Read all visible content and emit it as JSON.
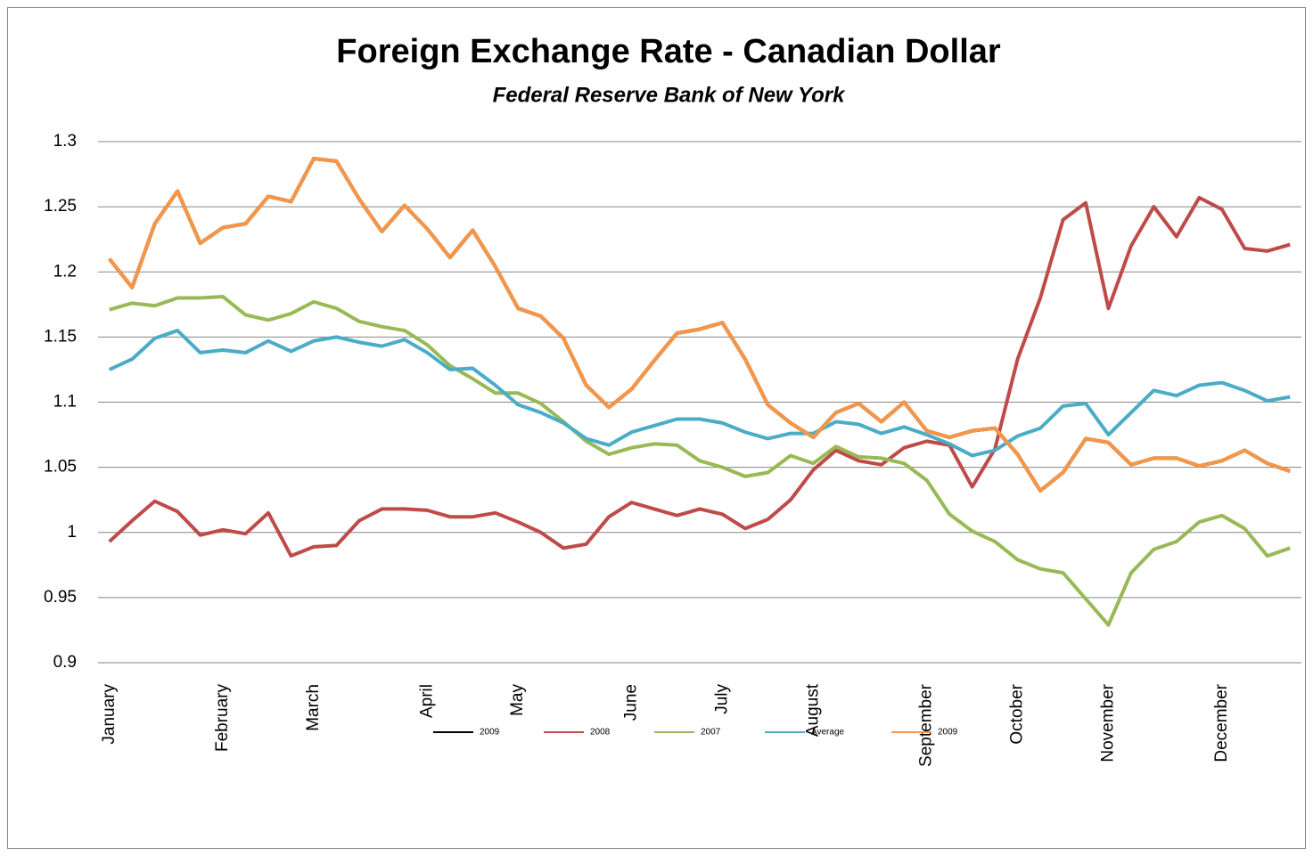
{
  "chart_data": {
    "type": "line",
    "title": "Foreign Exchange Rate - Canadian Dollar",
    "subtitle": "Federal Reserve Bank of New York",
    "categories": [
      "January",
      null,
      null,
      null,
      null,
      "February",
      null,
      null,
      null,
      "March",
      null,
      null,
      null,
      null,
      "April",
      null,
      null,
      null,
      "May",
      null,
      null,
      null,
      null,
      "June",
      null,
      null,
      null,
      "July",
      null,
      null,
      null,
      "August",
      null,
      null,
      null,
      null,
      "September",
      null,
      null,
      null,
      "October",
      null,
      null,
      null,
      "November",
      null,
      null,
      null,
      null,
      "December",
      null,
      null,
      null
    ],
    "ylim": [
      0.9,
      1.3
    ],
    "yticks": [
      0.9,
      0.95,
      1,
      1.05,
      1.1,
      1.15,
      1.2,
      1.25,
      1.3
    ],
    "grid": true,
    "legend": "bottom",
    "series": [
      {
        "name": "2009",
        "color": "#000000",
        "values": [
          1.21,
          1.188,
          1.237,
          1.262,
          1.222,
          1.234,
          1.237,
          1.258,
          1.254,
          1.287,
          1.285,
          1.256,
          1.231,
          1.251,
          1.233,
          1.211,
          1.232,
          1.204,
          1.172,
          1.166,
          1.149,
          1.113,
          1.096,
          1.11,
          1.132,
          1.153,
          1.156,
          1.161,
          1.133,
          1.098,
          1.084,
          1.073,
          1.092,
          1.099,
          1.085,
          1.1,
          1.078,
          1.073,
          1.078,
          1.08,
          1.06,
          1.032,
          1.046,
          1.072,
          1.069,
          1.052,
          1.057,
          1.057,
          1.051,
          1.055,
          1.063,
          1.053,
          1.047
        ]
      },
      {
        "name": "2008",
        "color": "#be4b48",
        "values": [
          0.993,
          1.009,
          1.024,
          1.016,
          0.998,
          1.002,
          0.999,
          1.015,
          0.982,
          0.989,
          0.99,
          1.009,
          1.018,
          1.018,
          1.017,
          1.012,
          1.012,
          1.015,
          1.008,
          1.0,
          0.988,
          0.991,
          1.012,
          1.023,
          1.018,
          1.013,
          1.018,
          1.014,
          1.003,
          1.01,
          1.025,
          1.048,
          1.063,
          1.055,
          1.052,
          1.065,
          1.07,
          1.067,
          1.035,
          1.064,
          1.133,
          1.18,
          1.24,
          1.253,
          1.172,
          1.22,
          1.25,
          1.227,
          1.257,
          1.248,
          1.218,
          1.216,
          1.221
        ]
      },
      {
        "name": "2007",
        "color": "#98b954",
        "values": [
          1.171,
          1.176,
          1.174,
          1.18,
          1.18,
          1.181,
          1.167,
          1.163,
          1.168,
          1.177,
          1.172,
          1.162,
          1.158,
          1.155,
          1.144,
          1.128,
          1.118,
          1.107,
          1.107,
          1.099,
          1.085,
          1.07,
          1.06,
          1.065,
          1.068,
          1.067,
          1.055,
          1.05,
          1.043,
          1.046,
          1.059,
          1.053,
          1.066,
          1.058,
          1.057,
          1.053,
          1.04,
          1.014,
          1.001,
          0.993,
          0.979,
          0.972,
          0.969,
          0.949,
          0.929,
          0.969,
          0.987,
          0.993,
          1.008,
          1.013,
          1.003,
          0.982,
          0.988
        ]
      },
      {
        "name": "Average",
        "color": "#4aacc6",
        "values": [
          1.125,
          1.133,
          1.149,
          1.155,
          1.138,
          1.14,
          1.138,
          1.147,
          1.139,
          1.147,
          1.15,
          1.146,
          1.143,
          1.148,
          1.138,
          1.125,
          1.126,
          1.113,
          1.098,
          1.092,
          1.084,
          1.072,
          1.067,
          1.077,
          1.082,
          1.087,
          1.087,
          1.084,
          1.077,
          1.072,
          1.076,
          1.076,
          1.085,
          1.083,
          1.076,
          1.081,
          1.075,
          1.068,
          1.059,
          1.063,
          1.074,
          1.08,
          1.097,
          1.099,
          1.075,
          1.092,
          1.109,
          1.105,
          1.113,
          1.115,
          1.109,
          1.101,
          1.104
        ]
      },
      {
        "name": "2009",
        "color": "#f79646",
        "values": [
          1.21,
          1.188,
          1.237,
          1.262,
          1.222,
          1.234,
          1.237,
          1.258,
          1.254,
          1.287,
          1.285,
          1.256,
          1.231,
          1.251,
          1.233,
          1.211,
          1.232,
          1.204,
          1.172,
          1.166,
          1.149,
          1.113,
          1.096,
          1.11,
          1.132,
          1.153,
          1.156,
          1.161,
          1.133,
          1.098,
          1.084,
          1.073,
          1.092,
          1.099,
          1.085,
          1.1,
          1.078,
          1.073,
          1.078,
          1.08,
          1.06,
          1.032,
          1.046,
          1.072,
          1.069,
          1.052,
          1.057,
          1.057,
          1.051,
          1.055,
          1.063,
          1.053,
          1.047
        ]
      }
    ]
  }
}
